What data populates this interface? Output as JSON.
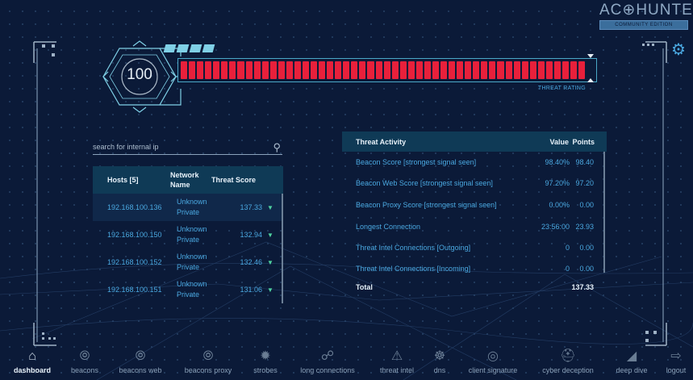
{
  "logo": {
    "text": "AC⊕HUNTER",
    "edition": "COMMUNITY EDITION"
  },
  "settings": {
    "icon": "gear-icon"
  },
  "threat_rating": {
    "score": "100",
    "label": "THREAT RATING",
    "fill_fraction": 1.0,
    "bar_color": "#e8203b"
  },
  "search": {
    "placeholder": "search for internal ip",
    "value": ""
  },
  "hosts": {
    "headers": {
      "host": "Hosts [5]",
      "network": "Network Name",
      "score": "Threat Score"
    },
    "rows": [
      {
        "ip": "192.168.100.136",
        "network": "Unknown Private",
        "score": "137.33"
      },
      {
        "ip": "192.168.100.150",
        "network": "Unknown Private",
        "score": "132.94"
      },
      {
        "ip": "192.168.100.152",
        "network": "Unknown Private",
        "score": "132.46"
      },
      {
        "ip": "192.168.100.151",
        "network": "Unknown Private",
        "score": "131.06"
      }
    ]
  },
  "activity": {
    "headers": {
      "activity": "Threat Activity",
      "value": "Value",
      "points": "Points"
    },
    "rows": [
      {
        "label": "Beacon Score [strongest signal seen]",
        "value": "98.40%",
        "points": "98.40"
      },
      {
        "label": "Beacon Web Score [strongest signal seen]",
        "value": "97.20%",
        "points": "97.20"
      },
      {
        "label": "Beacon Proxy Score [strongest signal seen]",
        "value": "0.00%",
        "points": "0.00"
      },
      {
        "label": "Longest Connection",
        "value": "23:56:00",
        "points": "23.93"
      },
      {
        "label": "Threat Intel Connections [Outgoing]",
        "value": "0",
        "points": "0.00"
      },
      {
        "label": "Threat Intel Connections [Incoming]",
        "value": "0",
        "points": "0.00"
      }
    ],
    "total_label": "Total",
    "total_points": "137.33"
  },
  "nav": [
    {
      "label": "dashboard",
      "icon": "home-icon",
      "active": true
    },
    {
      "label": "beacons",
      "icon": "beacon-icon"
    },
    {
      "label": "beacons web",
      "icon": "beacon-web-icon"
    },
    {
      "label": "beacons proxy",
      "icon": "beacon-proxy-icon"
    },
    {
      "label": "strobes",
      "icon": "strobe-icon"
    },
    {
      "label": "long connections",
      "icon": "connections-icon"
    },
    {
      "label": "threat intel",
      "icon": "warning-icon"
    },
    {
      "label": "dns",
      "icon": "dns-icon"
    },
    {
      "label": "client signature",
      "icon": "fingerprint-icon"
    },
    {
      "label": "cyber deception",
      "icon": "shield-icon"
    },
    {
      "label": "deep dive",
      "icon": "fin-icon"
    },
    {
      "label": "logout",
      "icon": "logout-icon"
    }
  ]
}
